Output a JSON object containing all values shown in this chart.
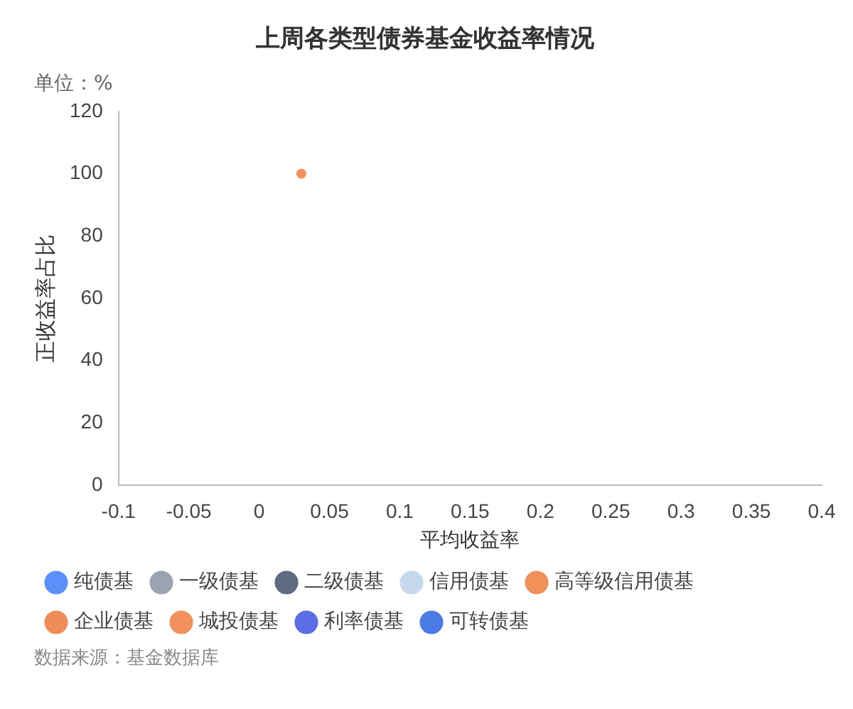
{
  "chart_data": {
    "type": "scatter",
    "title": "上周各类型债券基金收益率情况",
    "xlabel": "平均收益率",
    "ylabel": "正收益率占比",
    "annotations": [
      "单位：%",
      "数据来源：基金数据库"
    ],
    "xlim": [
      -0.1,
      0.4
    ],
    "xticks": [
      -0.1,
      -0.05,
      0,
      0.05,
      0.1,
      0.15,
      0.2,
      0.25,
      0.3,
      0.35,
      0.4
    ],
    "ylim": [
      0,
      120
    ],
    "yticks": [
      0,
      20,
      40,
      60,
      80,
      100,
      120
    ],
    "grid": false,
    "legend": "bottom",
    "marker": "circle",
    "series": [
      {
        "name": "纯债基",
        "color": "#5b8ff9"
      },
      {
        "name": "一级债基",
        "color": "#9aa3b2"
      },
      {
        "name": "二级债基",
        "color": "#5d6a82"
      },
      {
        "name": "信用债基",
        "color": "#c6d8ee"
      },
      {
        "name": "高等级信用债基",
        "color": "#f0915a"
      },
      {
        "name": "企业债基",
        "color": "#ee8c5a"
      },
      {
        "name": "城投债基",
        "color": "#f0915e",
        "x": [
          0.03
        ],
        "values": [
          100
        ]
      },
      {
        "name": "利率债基",
        "color": "#5b6ee6"
      },
      {
        "name": "可转债基",
        "color": "#4b7be5"
      }
    ]
  }
}
